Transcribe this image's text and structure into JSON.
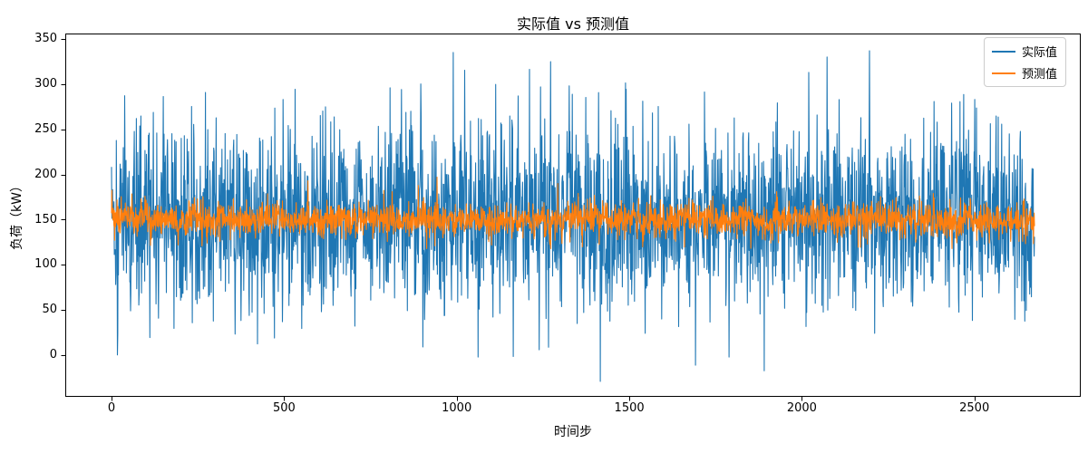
{
  "figure": {
    "title": "实际值 vs 预测值",
    "xlabel": "时间步",
    "ylabel": "负荷（kW）",
    "background": "#ffffff",
    "text_color": "#000000",
    "spine_color": "#000000"
  },
  "legend": {
    "position": "upper right",
    "items": [
      {
        "label": "实际值",
        "color": "#1f77b4"
      },
      {
        "label": "预测值",
        "color": "#ff7f0e"
      }
    ]
  },
  "chart_data": {
    "type": "line",
    "title": "实际值 vs 预测值",
    "xlabel": "时间步",
    "ylabel": "负荷（kW）",
    "x_ticks": [
      0,
      500,
      1000,
      1500,
      2000,
      2500
    ],
    "y_ticks": [
      0,
      50,
      100,
      150,
      200,
      250,
      300,
      350
    ],
    "xlim": [
      -134,
      2808
    ],
    "ylim": [
      -46,
      356
    ],
    "grid": false,
    "legend_position": "upper right",
    "n_points": 2675,
    "series": [
      {
        "name": "实际值",
        "color": "#1f77b4",
        "line_width": 1.1,
        "character": "high-variance noisy load signal",
        "mean": 152,
        "std": 50,
        "observed_min": -29,
        "observed_max": 337,
        "clip": [
          -29,
          337
        ],
        "seed": 20240601,
        "notable_points": [
          [
            18,
            24
          ],
          [
            497,
            283
          ],
          [
            807,
            296
          ],
          [
            840,
            294
          ],
          [
            990,
            335
          ],
          [
            1243,
            297
          ],
          [
            1416,
            -29
          ],
          [
            1692,
            -11
          ],
          [
            2020,
            313
          ],
          [
            2073,
            330
          ],
          [
            2196,
            337
          ],
          [
            2501,
            283
          ]
        ]
      },
      {
        "name": "预测值",
        "color": "#ff7f0e",
        "line_width": 1.1,
        "character": "smoothed prediction band around 150 kW",
        "mean": 150,
        "std": 10,
        "observed_min": 118,
        "observed_max": 198,
        "clip": [
          118,
          200
        ],
        "seed": 987654,
        "notable_points": [
          [
            569,
            193
          ],
          [
            943,
            197
          ],
          [
            1101,
            122
          ],
          [
            1293,
            190
          ],
          [
            2640,
            126
          ]
        ]
      }
    ]
  }
}
